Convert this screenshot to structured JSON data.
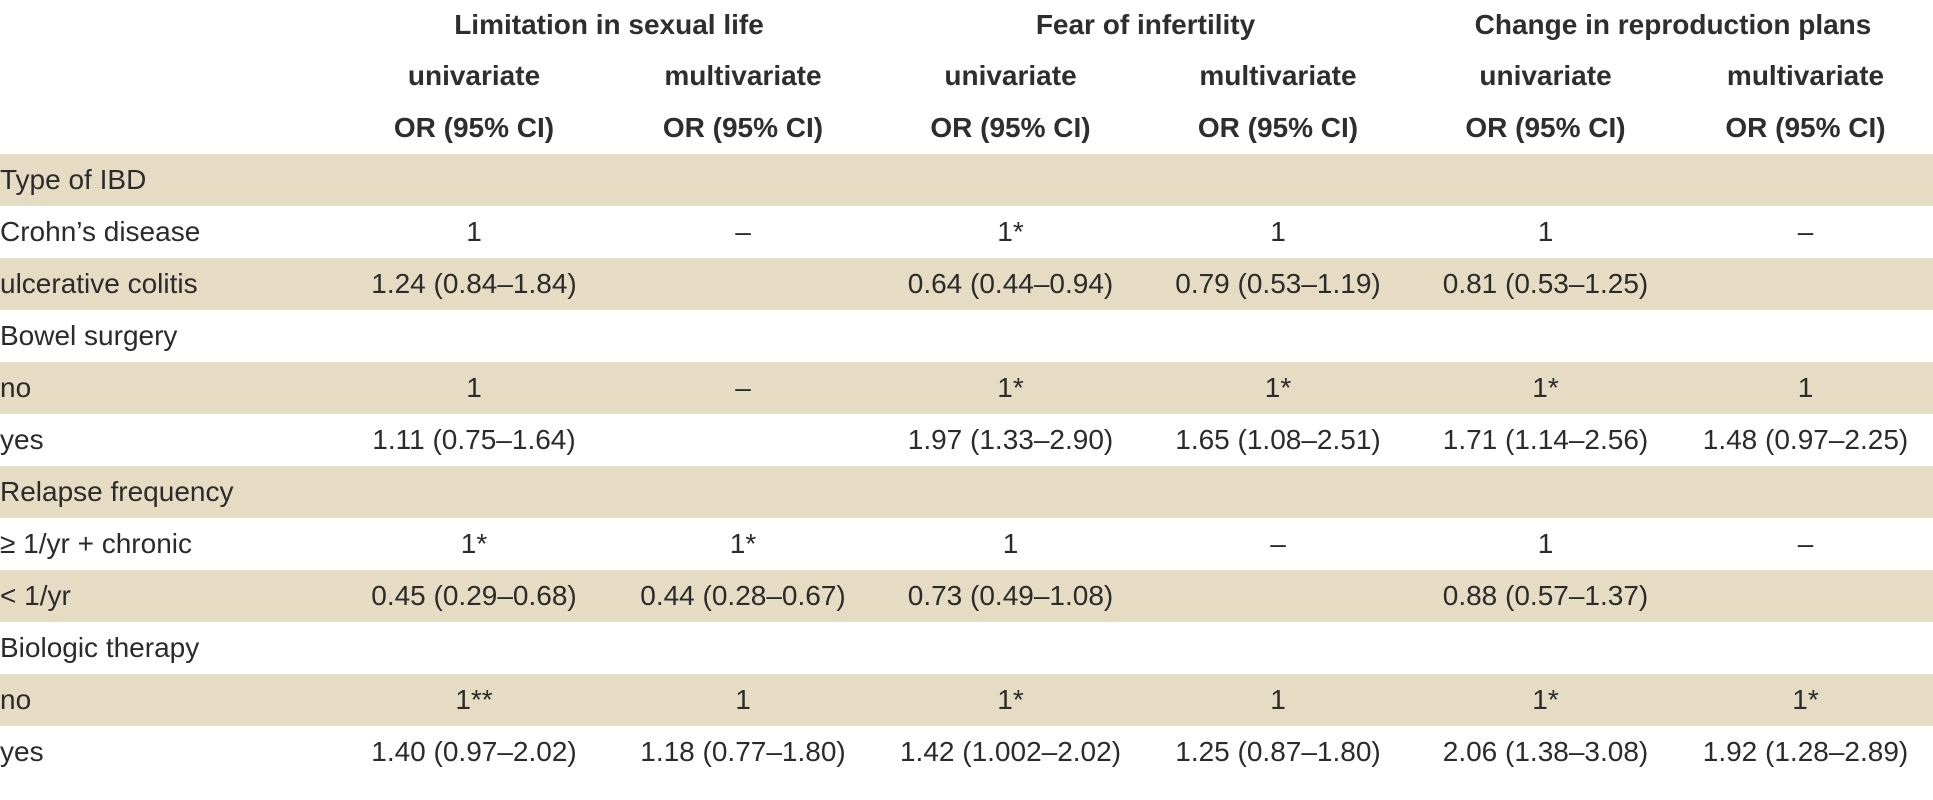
{
  "header": {
    "groups": [
      "Limitation in sexual life",
      "Fear of infertility",
      "Change in reproduction plans"
    ],
    "sub": [
      "univariate",
      "multivariate",
      "univariate",
      "multivariate",
      "univariate",
      "multivariate"
    ],
    "stat": [
      "OR (95% CI)",
      "OR (95% CI)",
      "OR (95% CI)",
      "OR (95% CI)",
      "OR (95% CI)",
      "OR (95% CI)"
    ]
  },
  "rows": [
    {
      "label": "Type of IBD",
      "kind": "group",
      "values": [
        "",
        "",
        "",
        "",
        "",
        ""
      ]
    },
    {
      "label": "Crohn’s disease",
      "kind": "sub",
      "values": [
        "1",
        "–",
        "1*",
        "1",
        "1",
        "–"
      ]
    },
    {
      "label": "ulcerative colitis",
      "kind": "sub",
      "values": [
        "1.24 (0.84–1.84)",
        "",
        "0.64 (0.44–0.94)",
        "0.79 (0.53–1.19)",
        "0.81 (0.53–1.25)",
        ""
      ]
    },
    {
      "label": "Bowel surgery",
      "kind": "group",
      "values": [
        "",
        "",
        "",
        "",
        "",
        ""
      ]
    },
    {
      "label": "no",
      "kind": "sub",
      "values": [
        "1",
        "–",
        "1*",
        "1*",
        "1*",
        "1"
      ]
    },
    {
      "label": "yes",
      "kind": "sub",
      "values": [
        "1.11 (0.75–1.64)",
        "",
        "1.97 (1.33–2.90)",
        "1.65 (1.08–2.51)",
        "1.71 (1.14–2.56)",
        "1.48 (0.97–2.25)"
      ]
    },
    {
      "label": "Relapse frequency",
      "kind": "group",
      "values": [
        "",
        "",
        "",
        "",
        "",
        ""
      ]
    },
    {
      "label": "≥ 1/yr + chronic",
      "kind": "sub",
      "values": [
        "1*",
        "1*",
        "1",
        "–",
        "1",
        "–"
      ]
    },
    {
      "label": "< 1/yr",
      "kind": "sub",
      "values": [
        "0.45 (0.29–0.68)",
        "0.44 (0.28–0.67)",
        "0.73 (0.49–1.08)",
        "",
        "0.88 (0.57–1.37)",
        ""
      ]
    },
    {
      "label": "Biologic therapy",
      "kind": "group",
      "values": [
        "",
        "",
        "",
        "",
        "",
        ""
      ]
    },
    {
      "label": "no",
      "kind": "sub",
      "values": [
        "1**",
        "1",
        "1*",
        "1",
        "1*",
        "1*"
      ]
    },
    {
      "label": "yes",
      "kind": "sub",
      "values": [
        "1.40 (0.97–2.02)",
        "1.18 (0.77–1.80)",
        "1.42 (1.002–2.02)",
        "1.25 (0.87–1.80)",
        "2.06 (1.38–3.08)",
        "1.92 (1.28–2.89)"
      ]
    }
  ],
  "colors": {
    "band": "#e6dcc3",
    "text": "#2b2b2b"
  }
}
